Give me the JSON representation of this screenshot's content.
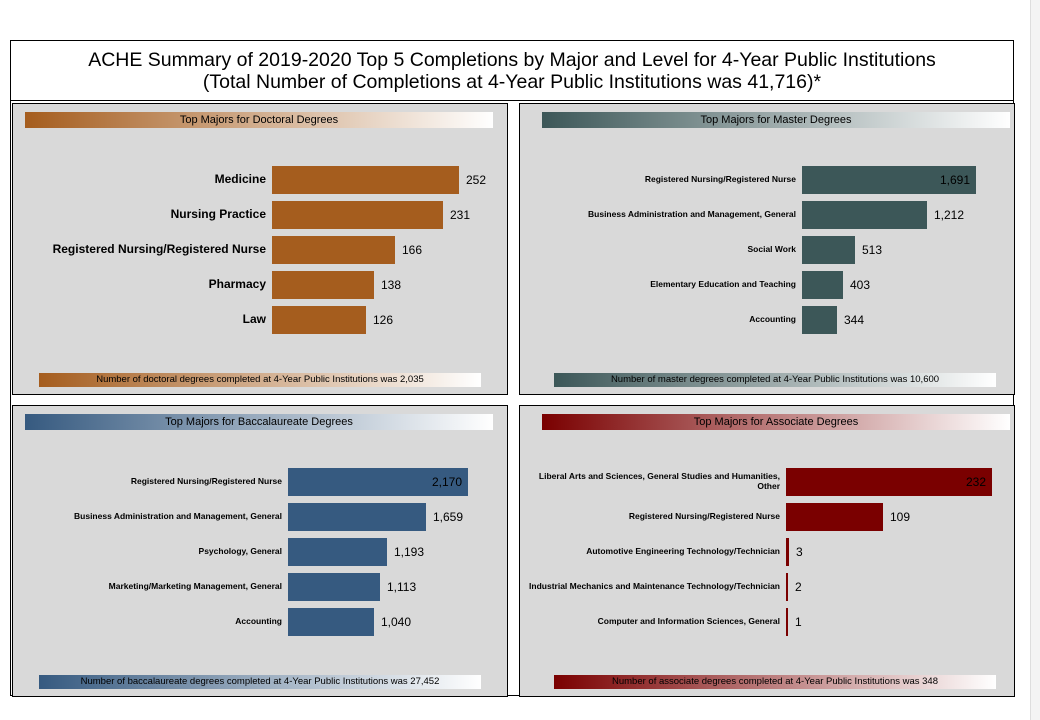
{
  "title": {
    "line1": "ACHE Summary of 2019-2020 Top 5 Completions by Major and Level for 4-Year Public Institutions",
    "line2": "(Total Number of Completions at 4-Year Public Institutions was 41,716)*"
  },
  "chart_data": [
    {
      "id": "doctoral",
      "type": "bar",
      "orientation": "horizontal",
      "title": "Top Majors for Doctoral Degrees",
      "footer": "Number of doctoral degrees completed at 4-Year Public Institutions was 2,035",
      "color": "#a55d1e",
      "gradient": [
        "#a55d1e",
        "#ffffff"
      ],
      "categories": [
        "Medicine",
        "Nursing Practice",
        "Registered Nursing/Registered Nurse",
        "Pharmacy",
        "Law"
      ],
      "values": [
        252,
        231,
        166,
        138,
        126
      ],
      "value_labels": [
        "252",
        "231",
        "166",
        "138",
        "126"
      ],
      "inside_label_index": -1,
      "xlim": [
        0,
        252
      ]
    },
    {
      "id": "master",
      "type": "bar",
      "orientation": "horizontal",
      "title": "Top Majors for Master Degrees",
      "footer": "Number of master degrees completed at 4-Year Public Institutions was 10,600",
      "color": "#3c5758",
      "gradient": [
        "#3c5758",
        "#ffffff"
      ],
      "categories": [
        "Registered Nursing/Registered Nurse",
        "Business Administration and Management, General",
        "Social Work",
        "Elementary Education and Teaching",
        "Accounting"
      ],
      "values": [
        1691,
        1212,
        513,
        403,
        344
      ],
      "value_labels": [
        "1,691",
        "1,212",
        "513",
        "403",
        "344"
      ],
      "inside_label_index": 0,
      "xlim": [
        0,
        1691
      ]
    },
    {
      "id": "bacc",
      "type": "bar",
      "orientation": "horizontal",
      "title": "Top Majors for Baccalaureate Degrees",
      "footer": "Number of baccalaureate degrees completed at 4-Year Public Institutions was 27,452",
      "color": "#365a80",
      "gradient": [
        "#365a80",
        "#ffffff"
      ],
      "categories": [
        "Registered Nursing/Registered Nurse",
        "Business Administration and Management, General",
        "Psychology, General",
        "Marketing/Marketing Management, General",
        "Accounting"
      ],
      "values": [
        2170,
        1659,
        1193,
        1113,
        1040
      ],
      "value_labels": [
        "2,170",
        "1,659",
        "1,193",
        "1,113",
        "1,040"
      ],
      "inside_label_index": 0,
      "xlim": [
        0,
        2170
      ]
    },
    {
      "id": "assoc",
      "type": "bar",
      "orientation": "horizontal",
      "title": "Top Majors for Associate Degrees",
      "footer": "Number of associate degrees completed at 4-Year Public Institutions was 348",
      "color": "#7a0000",
      "gradient": [
        "#7a0000",
        "#ffffff"
      ],
      "categories": [
        "Liberal Arts and Sciences, General Studies and Humanities, Other",
        "Registered Nursing/Registered Nurse",
        "Automotive Engineering Technology/Technician",
        "Industrial Mechanics and Maintenance Technology/Technician",
        "Computer and Information Sciences, General"
      ],
      "values": [
        232,
        109,
        3,
        2,
        1
      ],
      "value_labels": [
        "232",
        "109",
        "3",
        "2",
        "1"
      ],
      "inside_label_index": 0,
      "xlim": [
        0,
        232
      ]
    }
  ]
}
